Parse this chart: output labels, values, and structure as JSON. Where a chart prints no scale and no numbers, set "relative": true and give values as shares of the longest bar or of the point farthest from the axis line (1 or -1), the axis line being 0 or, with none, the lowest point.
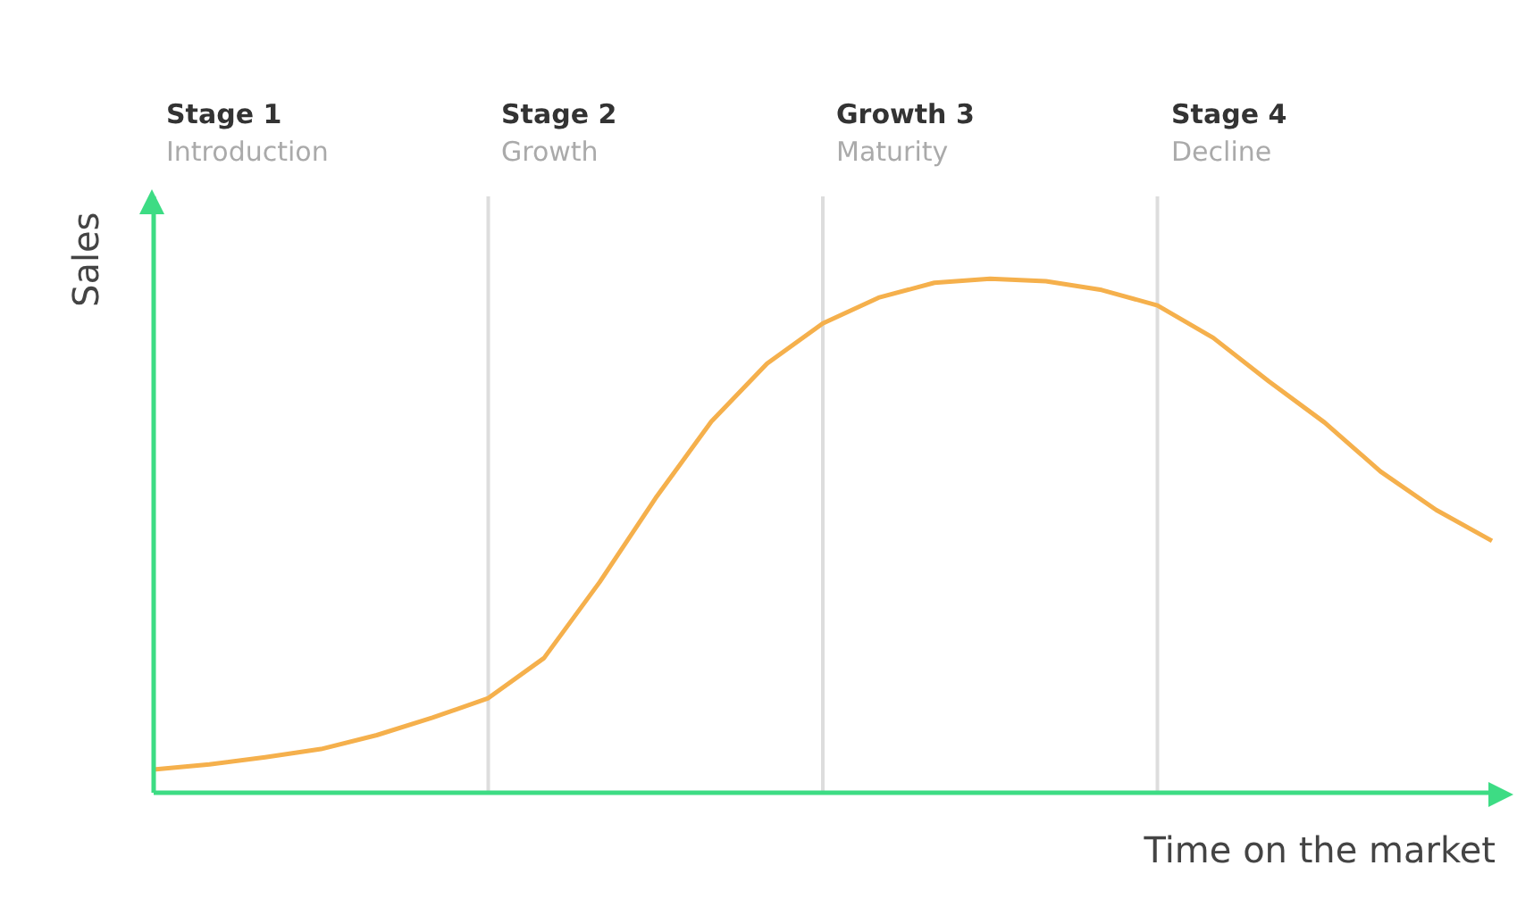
{
  "chart_data": {
    "type": "line",
    "relative": true,
    "xlabel": "Time on the market",
    "ylabel": "Sales",
    "grid": "x",
    "legend": false,
    "marker": "none",
    "line_style": "solid",
    "annotations": [
      "Stage 1\nIntroduction",
      "Stage 2\nGrowth",
      "Growth 3\nMaturity",
      "Stage 4\nDecline"
    ],
    "categories": [
      null,
      null,
      null,
      null,
      null,
      null,
      null,
      null,
      null,
      null,
      null,
      null,
      null,
      null,
      null,
      null,
      null,
      null,
      null,
      null,
      null,
      null,
      null,
      null,
      null
    ],
    "series": [
      {
        "color": "#f5b04c",
        "values": [
          0.045,
          0.055,
          0.069,
          0.085,
          0.112,
          0.146,
          0.184,
          0.262,
          0.41,
          0.573,
          0.722,
          0.835,
          0.913,
          0.963,
          0.992,
          1.0,
          0.995,
          0.978,
          0.948,
          0.885,
          0.8,
          0.72,
          0.625,
          0.55,
          0.49
        ]
      }
    ]
  }
}
